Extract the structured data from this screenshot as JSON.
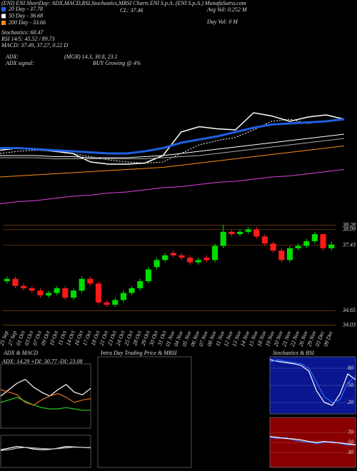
{
  "chart_data": [
    {
      "type": "line",
      "heading": "(ENI) ENI ShortDay: ADX,MACD,RSI,Stochastics,MRSI Charts ENI S.p.A. (ENI S.p.A.) MunafaSutra.com",
      "annotations": [
        "Stochastics: 60.47",
        "RSI 14/5: 45.52 / 89.73",
        "MACD: 37.49, 37.27, 0.22 D",
        "ADX:",
        "(MGR) 14.3, 30.8, 23.1",
        "ADX signal:",
        "BUY Growing @ 4%",
        "CL: 37.46",
        "Avg Vol: 0.252 M",
        "Day Vol: 0 M"
      ],
      "categories": [
        null,
        null,
        null,
        null,
        null,
        null,
        null,
        null,
        null,
        null,
        null,
        null,
        null,
        null,
        null,
        null,
        null,
        null,
        null,
        null
      ],
      "ylim": [
        0,
        100
      ],
      "series": [
        {
          "color": "#ffffff",
          "values": [
            53,
            55,
            54,
            52,
            50,
            42,
            40,
            40,
            41,
            48,
            70,
            75,
            73,
            72,
            88,
            85,
            80,
            84,
            86,
            82
          ]
        },
        {
          "color": "#ffffff",
          "dash": true,
          "values": [
            50,
            52,
            53,
            52,
            50,
            47,
            44,
            42,
            41,
            42,
            50,
            58,
            62,
            65,
            72,
            80,
            82,
            78,
            80,
            82
          ]
        },
        {
          "name": "20 Day - 37.78",
          "color": "#1f5fe0",
          "values": [
            55,
            55,
            54,
            53,
            52,
            51,
            50,
            50,
            52,
            55,
            60,
            63,
            66,
            70,
            74,
            77,
            78,
            79,
            80,
            82
          ]
        },
        {
          "name": "50 Day - 36.68",
          "color": "#ffffff",
          "values": [
            48,
            48,
            48,
            47,
            47,
            46,
            46,
            46,
            47,
            48,
            50,
            52,
            54,
            56,
            58,
            60,
            62,
            64,
            66,
            68
          ]
        },
        {
          "color": "#aaaaaa",
          "values": [
            46,
            46,
            46,
            45,
            45,
            45,
            45,
            45,
            45,
            46,
            47,
            48,
            50,
            52,
            54,
            56,
            58,
            60,
            62,
            64
          ]
        },
        {
          "name": "200 Day - 33.66",
          "color": "#ff8c1a",
          "values": [
            28,
            29,
            30,
            31,
            32,
            33,
            34,
            35,
            36,
            37,
            39,
            41,
            43,
            45,
            47,
            49,
            51,
            53,
            55,
            57
          ]
        },
        {
          "color": "#e040e0",
          "values": [
            3,
            5,
            6,
            8,
            10,
            11,
            13,
            14,
            16,
            18,
            19,
            21,
            23,
            24,
            26,
            28,
            29,
            31,
            33,
            35
          ]
        }
      ]
    },
    {
      "type": "candlestick",
      "categories": [
        "25 Sep",
        "27 Sep",
        "01 Oct",
        "03 Oct",
        "07 Oct",
        "09 Oct",
        "10 Oct",
        "11 Oct",
        "14 Oct",
        "16 Oct",
        "17 Oct",
        "18 Oct",
        "21 Oct",
        "23 Oct",
        "24 Oct",
        "25 Oct",
        "28 Oct",
        "29 Oct",
        "30 Oct",
        "31 Oct",
        "01 Nov",
        "04 Nov",
        "05 Nov",
        "06 Nov",
        "07 Nov",
        "08 Nov",
        "11 Nov",
        "12 Nov",
        "13 Nov",
        "14 Nov",
        "15 Nov",
        "18 Nov",
        "19 Nov",
        "20 Nov",
        "21 Nov",
        "22 Nov",
        "26 Nov",
        "29 Nov",
        "03 Dec",
        "09 Dec"
      ],
      "open": [
        35.9,
        36.0,
        35.7,
        35.6,
        35.5,
        35.3,
        35.4,
        35.6,
        35.2,
        35.5,
        36.0,
        35.8,
        35.0,
        34.9,
        35.1,
        35.4,
        35.6,
        35.9,
        36.5,
        36.8,
        37.1,
        37.0,
        36.9,
        36.7,
        36.9,
        36.8,
        37.4,
        38.0,
        37.9,
        38.0,
        38.1,
        37.8,
        37.5,
        37.2,
        36.8,
        37.3,
        37.4,
        37.6,
        37.9,
        37.3
      ],
      "high": [
        36.1,
        36.1,
        35.8,
        35.7,
        35.6,
        35.5,
        35.7,
        35.7,
        35.6,
        36.1,
        36.1,
        35.9,
        35.1,
        35.2,
        35.5,
        35.7,
        36.0,
        36.5,
        36.9,
        37.1,
        37.2,
        37.1,
        37.0,
        36.9,
        37.0,
        37.5,
        38.3,
        38.1,
        38.1,
        38.2,
        38.2,
        37.9,
        37.6,
        37.3,
        37.4,
        37.5,
        37.7,
        38.0,
        37.9,
        37.6
      ],
      "low": [
        35.8,
        35.6,
        35.5,
        35.4,
        35.2,
        35.2,
        35.3,
        35.1,
        35.1,
        35.4,
        35.7,
        34.9,
        34.8,
        34.8,
        35.0,
        35.3,
        35.5,
        35.8,
        36.4,
        36.7,
        36.9,
        36.8,
        36.6,
        36.6,
        36.7,
        36.7,
        37.3,
        37.8,
        37.8,
        37.9,
        37.7,
        37.4,
        37.1,
        36.7,
        36.7,
        37.2,
        37.3,
        37.5,
        37.2,
        37.2
      ],
      "close": [
        36.0,
        35.7,
        35.6,
        35.5,
        35.3,
        35.4,
        35.6,
        35.2,
        35.5,
        36.0,
        35.8,
        35.0,
        34.9,
        35.1,
        35.4,
        35.6,
        35.9,
        36.4,
        36.8,
        37.0,
        37.0,
        36.9,
        36.7,
        36.8,
        36.8,
        37.4,
        38.0,
        37.9,
        38.0,
        38.1,
        37.8,
        37.5,
        37.2,
        36.8,
        37.3,
        37.4,
        37.6,
        37.9,
        37.3,
        37.46
      ],
      "up_color": "#00dd00",
      "down_color": "#ff1a1a",
      "ylim": [
        33.9,
        38.6
      ],
      "yticks": [
        38.28,
        38.09,
        37.43,
        34.65,
        34.03
      ],
      "grid": true
    },
    {
      "type": "line",
      "title": "ADX & MACD",
      "subtitle": "ADX: 14.29 +DI: 30.77 -DI: 23.08",
      "categories": [
        null,
        null,
        null,
        null,
        null,
        null,
        null,
        null,
        null,
        null,
        null,
        null
      ],
      "ylim": [
        0,
        50
      ],
      "series": [
        {
          "color": "#22cc22",
          "values": [
            20,
            22,
            24,
            21,
            18,
            16,
            15,
            15,
            16,
            15,
            14,
            14
          ]
        },
        {
          "color": "#ffffff",
          "values": [
            25,
            30,
            35,
            38,
            32,
            28,
            25,
            30,
            34,
            28,
            26,
            31
          ]
        },
        {
          "color": "#e07020",
          "values": [
            30,
            28,
            26,
            20,
            18,
            22,
            25,
            27,
            24,
            20,
            22,
            23
          ]
        }
      ]
    },
    {
      "type": "line",
      "categories": [
        null,
        null,
        null,
        null,
        null,
        null,
        null,
        null,
        null,
        null,
        null,
        null
      ],
      "ylim": [
        -1,
        1
      ],
      "series": [
        {
          "color": "#ffffff",
          "values": [
            0.1,
            0.2,
            0.3,
            0.25,
            0.15,
            0.1,
            0.12,
            0.2,
            0.3,
            0.28,
            0.25,
            0.22
          ]
        },
        {
          "color": "#bbbbbb",
          "values": [
            0.05,
            0.1,
            0.2,
            0.25,
            0.22,
            0.18,
            0.15,
            0.17,
            0.22,
            0.26,
            0.25,
            0.24
          ]
        }
      ]
    },
    {
      "type": "line",
      "title": "Intra Day Trading Price & MRSI",
      "series": []
    },
    {
      "type": "line",
      "title": "Stochastics & RSI",
      "background": "#0a1690",
      "categories": [
        null,
        null,
        null,
        null,
        null,
        null,
        null,
        null,
        null,
        null,
        null,
        null
      ],
      "ylim": [
        0,
        100
      ],
      "yticks": [
        80,
        50,
        20
      ],
      "series": [
        {
          "color": "#ffffff",
          "values": [
            95,
            92,
            90,
            88,
            85,
            75,
            40,
            20,
            15,
            35,
            70,
            60
          ]
        },
        {
          "color": "#2a6aff",
          "values": [
            90,
            95,
            92,
            90,
            88,
            80,
            55,
            30,
            20,
            25,
            55,
            65
          ]
        }
      ]
    },
    {
      "type": "line",
      "background": "#8a0000",
      "categories": [
        null,
        null,
        null,
        null,
        null,
        null,
        null,
        null,
        null,
        null,
        null,
        null
      ],
      "ylim": [
        0,
        100
      ],
      "yticks": [
        70,
        50,
        30
      ],
      "series": [
        {
          "color": "#2a6aff",
          "values": [
            60,
            58,
            60,
            55,
            52,
            50,
            48,
            50,
            52,
            48,
            45,
            46
          ]
        },
        {
          "color": "#ffffff",
          "values": [
            62,
            60,
            58,
            57,
            55,
            52,
            50,
            52,
            50,
            49,
            47,
            45
          ]
        }
      ]
    }
  ]
}
